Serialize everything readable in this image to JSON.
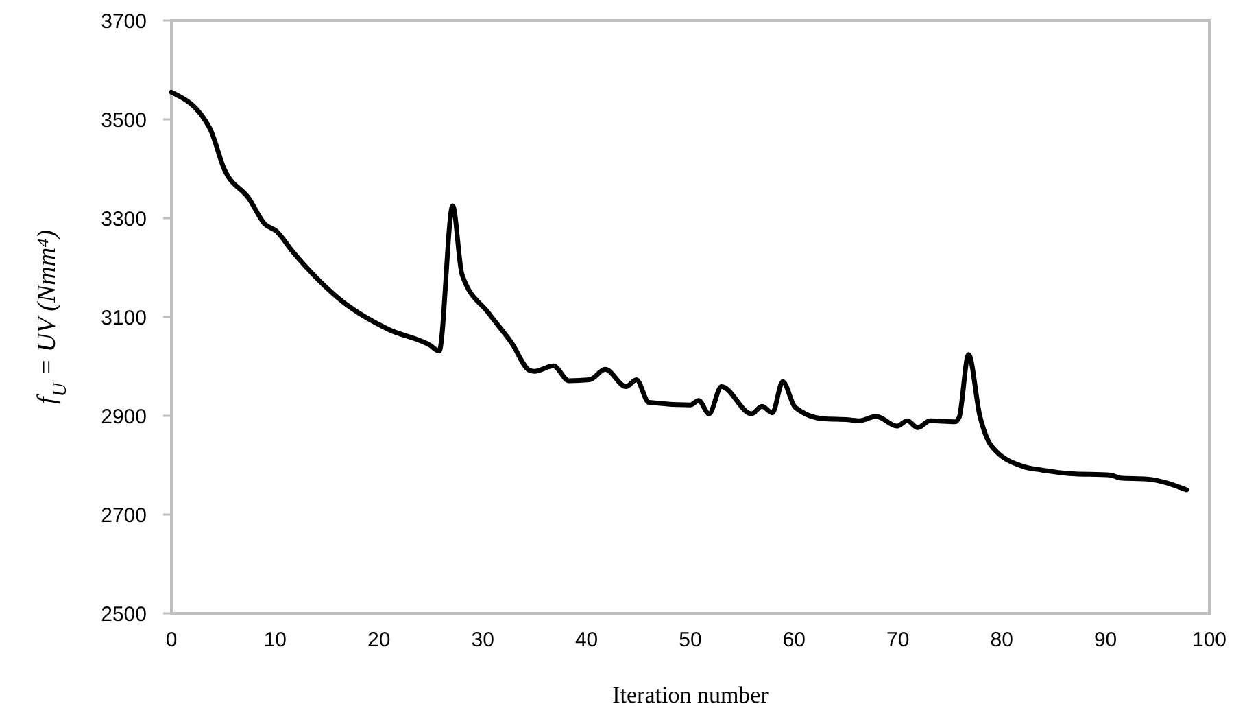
{
  "chart_data": {
    "type": "line",
    "xlabel": "Iteration number",
    "ylabel": "f$_{U}$ = UV (Nmm⁴)",
    "xlim": [
      0,
      100
    ],
    "xticks": [
      0,
      10,
      20,
      30,
      40,
      50,
      60,
      70,
      80,
      90,
      100
    ],
    "ylim": [
      2500,
      3700
    ],
    "yticks": [
      2500,
      2700,
      2900,
      3100,
      3300,
      3500,
      3700
    ],
    "grid": false,
    "marker": "none",
    "line_style": "solid",
    "series": [
      {
        "color": "#000000",
        "x": [
          0,
          3.7,
          5.1,
          7.5,
          9.0,
          10.1,
          11.7,
          16.5,
          20.9,
          24.9,
          25.8,
          27.1,
          28.0,
          30.6,
          32.8,
          34.5,
          35.0,
          36.8,
          38.3,
          40.3,
          41.8,
          43.8,
          44.8,
          46.0,
          50.0,
          50.8,
          51.8,
          53.0,
          55.9,
          56.9,
          57.9,
          58.9,
          60.1,
          62.8,
          65.2,
          66.3,
          67.9,
          69.9,
          70.9,
          71.9,
          73.1,
          75.5,
          75.9,
          76.8,
          77.9,
          79.0,
          82.1,
          83.9,
          86.5,
          90.5,
          91.4,
          94.0,
          97.8
        ],
        "values": [
          3555,
          3482,
          3399,
          3339,
          3288,
          3274,
          3232,
          3131,
          3075,
          3043,
          3031,
          3325,
          3186,
          3107,
          3047,
          2992,
          2990,
          3001,
          2971,
          2973,
          2994,
          2959,
          2973,
          2927,
          2922,
          2931,
          2904,
          2959,
          2904,
          2919,
          2906,
          2969,
          2917,
          2894,
          2892,
          2890,
          2899,
          2879,
          2890,
          2876,
          2890,
          2888,
          2897,
          3024,
          2899,
          2839,
          2797,
          2790,
          2783,
          2780,
          2774,
          2772,
          2750
        ]
      }
    ]
  }
}
